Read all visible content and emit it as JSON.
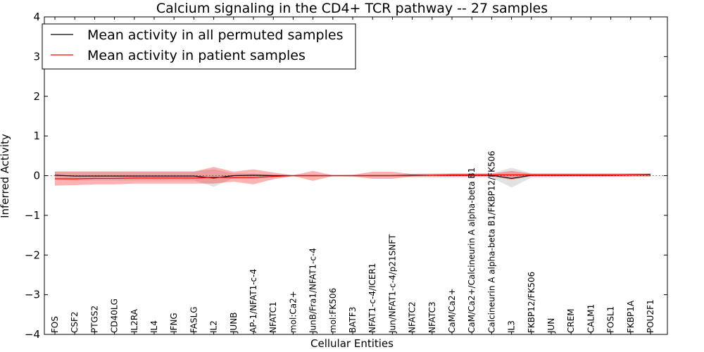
{
  "chart_data": {
    "type": "line",
    "title": "Calcium signaling in the CD4+ TCR pathway -- 27 samples",
    "xlabel": "Cellular Entities",
    "ylabel": "Inferred Activity",
    "ylim": [
      -4,
      4
    ],
    "yticks": [
      -4,
      -3,
      -2,
      -1,
      0,
      1,
      2,
      3,
      4
    ],
    "ytick_labels": [
      "−4",
      "−3",
      "−2",
      "−1",
      "0",
      "1",
      "2",
      "3",
      "4"
    ],
    "grid": false,
    "legend_position": "top-left",
    "categories": [
      "FOS",
      "CSF2",
      "PTGS2",
      "CD40LG",
      "IL2RA",
      "IL4",
      "IFNG",
      "FASLG",
      "IL2",
      "JUNB",
      "AP-1/NFAT1-c-4",
      "NFATC1",
      "mol:Ca2+",
      "JunB/Fra1/NFAT1-c-4",
      "mol:FK506",
      "BATF3",
      "NFAT1-c-4/ICER1",
      "Jun/NFAT1-c-4/p21SNFT",
      "NFATC2",
      "NFATC3",
      "CaM/Ca2+",
      "CaM/Ca2+/Calcineurin A alpha-beta B1",
      "Calcineurin A alpha-beta B1/FKBP12/FK506",
      "IL3",
      "FKBP12/FK506",
      "JUN",
      "CREM",
      "CALM1",
      "FOSL1",
      "FKBP1A",
      "POU2F1"
    ],
    "series": [
      {
        "name": "Mean activity in all permuted samples",
        "color": "#000000",
        "values": [
          0.01,
          -0.01,
          -0.01,
          -0.01,
          -0.01,
          -0.01,
          -0.01,
          -0.01,
          -0.06,
          0.0,
          0.01,
          0.0,
          0.0,
          0.0,
          0.0,
          0.0,
          0.0,
          0.0,
          0.01,
          0.01,
          0.01,
          0.01,
          0.01,
          -0.07,
          0.01,
          0.01,
          0.01,
          0.01,
          0.01,
          0.02,
          0.02
        ],
        "band_upper": [
          0.11,
          0.11,
          0.11,
          0.11,
          0.11,
          0.11,
          0.11,
          0.11,
          0.16,
          0.06,
          0.05,
          0.03,
          0.01,
          0.02,
          0.01,
          0.01,
          0.02,
          0.02,
          0.05,
          0.06,
          0.06,
          0.06,
          0.06,
          0.2,
          0.06,
          0.06,
          0.06,
          0.06,
          0.06,
          0.06,
          0.06
        ],
        "band_lower": [
          -0.09,
          -0.12,
          -0.12,
          -0.12,
          -0.12,
          -0.12,
          -0.12,
          -0.12,
          -0.28,
          -0.06,
          -0.04,
          -0.02,
          -0.01,
          -0.02,
          -0.01,
          -0.01,
          -0.02,
          -0.02,
          -0.05,
          -0.05,
          -0.05,
          -0.05,
          -0.05,
          -0.3,
          -0.05,
          -0.05,
          -0.04,
          -0.04,
          -0.04,
          -0.03,
          -0.03
        ]
      },
      {
        "name": "Mean activity in patient samples",
        "color": "#ff0000",
        "values": [
          -0.08,
          -0.08,
          -0.07,
          -0.07,
          -0.06,
          -0.06,
          -0.06,
          -0.06,
          -0.04,
          -0.05,
          -0.05,
          -0.02,
          0.0,
          0.0,
          0.0,
          0.0,
          0.0,
          0.0,
          0.0,
          0.01,
          0.02,
          0.02,
          0.02,
          0.02,
          0.02,
          0.02,
          0.02,
          0.02,
          0.02,
          0.02,
          0.03
        ],
        "band_upper": [
          0.1,
          0.1,
          0.1,
          0.1,
          0.1,
          0.1,
          0.1,
          0.1,
          0.22,
          0.1,
          0.16,
          0.08,
          0.01,
          0.12,
          0.01,
          0.02,
          0.1,
          0.1,
          0.04,
          0.04,
          0.05,
          0.05,
          0.05,
          0.12,
          0.05,
          0.05,
          0.05,
          0.05,
          0.05,
          0.05,
          0.05
        ],
        "band_lower": [
          -0.25,
          -0.24,
          -0.22,
          -0.22,
          -0.2,
          -0.2,
          -0.2,
          -0.2,
          -0.2,
          -0.15,
          -0.22,
          -0.09,
          -0.01,
          -0.13,
          -0.01,
          -0.02,
          -0.08,
          -0.08,
          -0.02,
          -0.02,
          -0.02,
          -0.02,
          -0.02,
          -0.1,
          -0.02,
          -0.02,
          -0.02,
          -0.02,
          -0.02,
          -0.02,
          -0.02
        ]
      }
    ]
  }
}
